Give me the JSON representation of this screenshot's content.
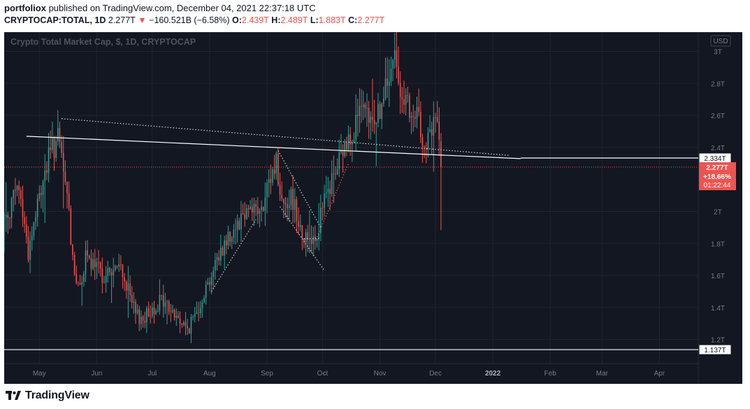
{
  "publisher": {
    "user": "portfoliox",
    "text": "published on TradingView.com, December 04, 2021 22:37:18 UTC"
  },
  "symbol_bar": {
    "symbol": "CRYPTOCAP:TOTAL, 1D",
    "last": "2.277T",
    "arrow": "▼",
    "change": "−160.521B (−6.58%)",
    "o_label": "O:",
    "o": "2.439T",
    "h_label": "H:",
    "h": "2.489T",
    "l_label": "L:",
    "l": "1.883T",
    "c_label": "C:",
    "c": "2.277T"
  },
  "brand": {
    "name": "TradingView"
  },
  "chart_data": {
    "type": "candlestick",
    "title": "Crypto Total Market Cap, $, 1D, CRYPTOCAP",
    "currency_badge": "USD",
    "x_axis_labels": [
      "May",
      "Jun",
      "Jul",
      "Aug",
      "Sep",
      "Oct",
      "Nov",
      "Dec",
      "2022",
      "Feb",
      "Mar",
      "Apr"
    ],
    "y_axis_labels": [
      "3T",
      "2.8T",
      "2.6T",
      "2.4T",
      "2T",
      "1.8T",
      "1.6T",
      "1.4T",
      "1.2T"
    ],
    "y_range": [
      1.05,
      3.12
    ],
    "x_range": [
      "2021-04-12",
      "2022-04-22"
    ],
    "price_markers": [
      {
        "value": 2.334,
        "label": "2.334T"
      },
      {
        "value": 1.137,
        "label": "1.137T"
      }
    ],
    "current_price": {
      "value": 2.277,
      "label": "2.277T",
      "change": "+18.66%",
      "countdown": "01:22:44"
    },
    "anchors": [
      [
        "2021-04-12",
        1.95
      ],
      [
        "2021-04-20",
        2.15
      ],
      [
        "2021-04-25",
        1.75
      ],
      [
        "2021-05-03",
        2.2
      ],
      [
        "2021-05-07",
        2.37
      ],
      [
        "2021-05-11",
        2.45
      ],
      [
        "2021-05-16",
        2.1
      ],
      [
        "2021-05-19",
        1.72
      ],
      [
        "2021-05-22",
        1.5
      ],
      [
        "2021-05-26",
        1.7
      ],
      [
        "2021-06-05",
        1.6
      ],
      [
        "2021-06-14",
        1.65
      ],
      [
        "2021-06-22",
        1.35
      ],
      [
        "2021-06-26",
        1.33
      ],
      [
        "2021-07-06",
        1.45
      ],
      [
        "2021-07-20",
        1.26
      ],
      [
        "2021-07-22",
        1.3
      ],
      [
        "2021-08-01",
        1.58
      ],
      [
        "2021-08-08",
        1.78
      ],
      [
        "2021-08-15",
        1.92
      ],
      [
        "2021-08-23",
        2.05
      ],
      [
        "2021-08-29",
        1.98
      ],
      [
        "2021-09-06",
        2.33
      ],
      [
        "2021-09-08",
        2.08
      ],
      [
        "2021-09-15",
        2.08
      ],
      [
        "2021-09-21",
        1.83
      ],
      [
        "2021-09-28",
        1.86
      ],
      [
        "2021-10-01",
        2.02
      ],
      [
        "2021-10-07",
        2.22
      ],
      [
        "2021-10-15",
        2.45
      ],
      [
        "2021-10-21",
        2.62
      ],
      [
        "2021-10-26",
        2.55
      ],
      [
        "2021-11-01",
        2.63
      ],
      [
        "2021-11-09",
        2.95
      ],
      [
        "2021-11-12",
        2.8
      ],
      [
        "2021-11-18",
        2.55
      ],
      [
        "2021-11-22",
        2.58
      ],
      [
        "2021-11-26",
        2.4
      ],
      [
        "2021-12-01",
        2.58
      ],
      [
        "2021-12-03",
        2.44
      ],
      [
        "2021-12-04",
        2.277
      ]
    ],
    "last_candle": {
      "date": "2021-12-04",
      "open": 2.439,
      "high": 2.489,
      "low": 1.883,
      "close": 2.277
    },
    "trendlines": [
      {
        "kind": "solid",
        "from": [
          "2021-04-24",
          2.47
        ],
        "to": [
          "2022-01-16",
          2.33
        ]
      },
      {
        "kind": "dotted",
        "from": [
          "2021-05-13",
          2.58
        ],
        "to": [
          "2022-01-10",
          2.35
        ]
      },
      {
        "kind": "dotted",
        "from": [
          "2021-08-02",
          1.5
        ],
        "to": [
          "2021-08-26",
          1.95
        ]
      },
      {
        "kind": "dotted",
        "from": [
          "2021-09-07",
          2.38
        ],
        "to": [
          "2021-09-30",
          1.9
        ]
      },
      {
        "kind": "dotted",
        "from": [
          "2021-09-08",
          2.03
        ],
        "to": [
          "2021-10-02",
          1.63
        ]
      },
      {
        "kind": "dotted",
        "from": [
          "2021-09-21",
          1.83
        ],
        "to": [
          "2021-09-30",
          1.83
        ]
      },
      {
        "kind": "dotted-red",
        "from": [
          "2021-09-28",
          1.84
        ],
        "to": [
          "2021-10-15",
          2.3
        ]
      }
    ],
    "colors": {
      "background": "#131722",
      "grid": "#202430",
      "up": "#26a69a",
      "down": "#ef5350",
      "axis_text": "#787b86",
      "title_text": "#50535e",
      "trendline": "#ffffff",
      "current_line": "#ef5350"
    }
  }
}
